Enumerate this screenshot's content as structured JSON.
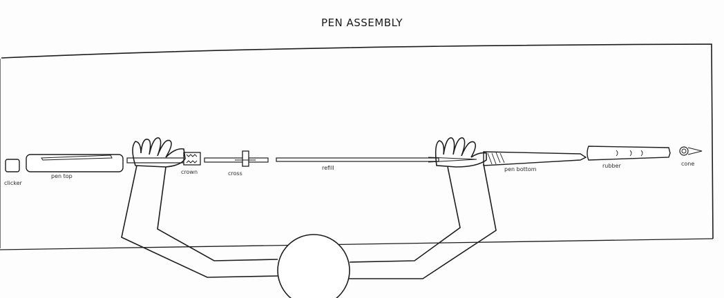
{
  "title": "PEN ASSEMBLY",
  "parts": [
    {
      "id": "clicker",
      "label": "clicker"
    },
    {
      "id": "pen-top",
      "label": "pen top"
    },
    {
      "id": "crown",
      "label": "crown"
    },
    {
      "id": "cross",
      "label": "cross"
    },
    {
      "id": "refill",
      "label": "refill"
    },
    {
      "id": "pen-bottom",
      "label": "pen bottom"
    },
    {
      "id": "rubber",
      "label": "rubber"
    },
    {
      "id": "cone",
      "label": "cone"
    }
  ]
}
